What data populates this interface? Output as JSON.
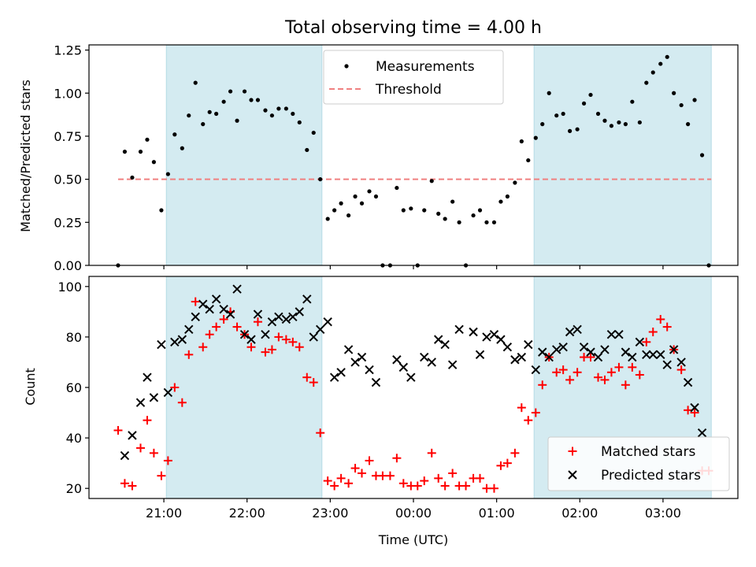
{
  "chart_data": [
    {
      "type": "scatter",
      "title": "Total observing time = 4.00 h",
      "xlabel": "",
      "ylabel": "Matched/Predicted stars",
      "ylim": [
        0,
        1.28
      ],
      "yticks": [
        0.0,
        0.25,
        0.5,
        0.75,
        1.0,
        1.25
      ],
      "ytick_labels": [
        "0.00",
        "0.25",
        "0.50",
        "0.75",
        "1.00",
        "1.25"
      ],
      "x_unit": "hours after 21:00 UTC",
      "xlim": [
        -0.9,
        6.9
      ],
      "shaded_intervals": [
        [
          0.03,
          1.9
        ],
        [
          4.45,
          6.58
        ]
      ],
      "threshold": {
        "name": "Threshold",
        "value": 0.5,
        "x_range": [
          -0.55,
          6.58
        ],
        "color": "#f08080"
      },
      "series": [
        {
          "name": "Measurements",
          "color": "#000000",
          "marker": "dot",
          "points": [
            [
              -0.55,
              0.0
            ],
            [
              -0.47,
              0.66
            ],
            [
              -0.38,
              0.51
            ],
            [
              -0.28,
              0.66
            ],
            [
              -0.2,
              0.73
            ],
            [
              -0.12,
              0.6
            ],
            [
              -0.03,
              0.32
            ],
            [
              0.05,
              0.53
            ],
            [
              0.13,
              0.76
            ],
            [
              0.22,
              0.68
            ],
            [
              0.3,
              0.87
            ],
            [
              0.38,
              1.06
            ],
            [
              0.47,
              0.82
            ],
            [
              0.55,
              0.89
            ],
            [
              0.63,
              0.88
            ],
            [
              0.72,
              0.95
            ],
            [
              0.8,
              1.01
            ],
            [
              0.88,
              0.84
            ],
            [
              0.97,
              1.01
            ],
            [
              1.05,
              0.96
            ],
            [
              1.13,
              0.96
            ],
            [
              1.22,
              0.9
            ],
            [
              1.3,
              0.87
            ],
            [
              1.38,
              0.91
            ],
            [
              1.47,
              0.91
            ],
            [
              1.55,
              0.88
            ],
            [
              1.63,
              0.83
            ],
            [
              1.72,
              0.67
            ],
            [
              1.8,
              0.77
            ],
            [
              1.88,
              0.5
            ],
            [
              1.97,
              0.27
            ],
            [
              2.05,
              0.32
            ],
            [
              2.13,
              0.36
            ],
            [
              2.22,
              0.29
            ],
            [
              2.3,
              0.4
            ],
            [
              2.38,
              0.36
            ],
            [
              2.47,
              0.43
            ],
            [
              2.55,
              0.4
            ],
            [
              2.63,
              0.0
            ],
            [
              2.72,
              0.0
            ],
            [
              2.8,
              0.45
            ],
            [
              2.88,
              0.32
            ],
            [
              2.97,
              0.33
            ],
            [
              3.05,
              0.0
            ],
            [
              3.13,
              0.32
            ],
            [
              3.22,
              0.49
            ],
            [
              3.3,
              0.3
            ],
            [
              3.38,
              0.27
            ],
            [
              3.47,
              0.37
            ],
            [
              3.55,
              0.25
            ],
            [
              3.63,
              0.0
            ],
            [
              3.72,
              0.29
            ],
            [
              3.8,
              0.32
            ],
            [
              3.88,
              0.25
            ],
            [
              3.97,
              0.25
            ],
            [
              4.05,
              0.37
            ],
            [
              4.13,
              0.4
            ],
            [
              4.22,
              0.48
            ],
            [
              4.3,
              0.72
            ],
            [
              4.38,
              0.61
            ],
            [
              4.47,
              0.74
            ],
            [
              4.55,
              0.82
            ],
            [
              4.63,
              1.0
            ],
            [
              4.72,
              0.87
            ],
            [
              4.8,
              0.88
            ],
            [
              4.88,
              0.78
            ],
            [
              4.97,
              0.79
            ],
            [
              5.05,
              0.94
            ],
            [
              5.13,
              0.99
            ],
            [
              5.22,
              0.88
            ],
            [
              5.3,
              0.84
            ],
            [
              5.38,
              0.81
            ],
            [
              5.47,
              0.83
            ],
            [
              5.55,
              0.82
            ],
            [
              5.63,
              0.95
            ],
            [
              5.72,
              0.83
            ],
            [
              5.8,
              1.06
            ],
            [
              5.88,
              1.12
            ],
            [
              5.97,
              1.17
            ],
            [
              6.05,
              1.21
            ],
            [
              6.13,
              1.0
            ],
            [
              6.22,
              0.93
            ],
            [
              6.3,
              0.82
            ],
            [
              6.38,
              0.96
            ],
            [
              6.47,
              0.64
            ],
            [
              6.55,
              0.0
            ]
          ]
        }
      ],
      "legend": {
        "position": "upper center",
        "entries": [
          "Measurements",
          "Threshold"
        ]
      }
    },
    {
      "type": "scatter",
      "title": "",
      "xlabel": "Time (UTC)",
      "ylabel": "Count",
      "ylim": [
        16,
        104
      ],
      "yticks": [
        20,
        40,
        60,
        80,
        100
      ],
      "ytick_labels": [
        "20",
        "40",
        "60",
        "80",
        "100"
      ],
      "xticks": [
        0,
        1,
        2,
        3,
        4,
        5,
        6
      ],
      "xtick_labels": [
        "21:00",
        "22:00",
        "23:00",
        "00:00",
        "01:00",
        "02:00",
        "03:00"
      ],
      "x_unit": "hours after 21:00 UTC",
      "xlim": [
        -0.9,
        6.9
      ],
      "shaded_intervals": [
        [
          0.03,
          1.9
        ],
        [
          4.45,
          6.58
        ]
      ],
      "series": [
        {
          "name": "Matched stars",
          "color": "#ff0000",
          "marker": "plus",
          "points": [
            [
              -0.55,
              43
            ],
            [
              -0.47,
              22
            ],
            [
              -0.38,
              21
            ],
            [
              -0.28,
              36
            ],
            [
              -0.2,
              47
            ],
            [
              -0.12,
              34
            ],
            [
              -0.03,
              25
            ],
            [
              0.05,
              31
            ],
            [
              0.13,
              60
            ],
            [
              0.22,
              54
            ],
            [
              0.3,
              73
            ],
            [
              0.38,
              94
            ],
            [
              0.47,
              76
            ],
            [
              0.55,
              81
            ],
            [
              0.63,
              84
            ],
            [
              0.72,
              87
            ],
            [
              0.8,
              90
            ],
            [
              0.88,
              84
            ],
            [
              0.97,
              81
            ],
            [
              1.05,
              76
            ],
            [
              1.13,
              86
            ],
            [
              1.22,
              74
            ],
            [
              1.3,
              75
            ],
            [
              1.38,
              80
            ],
            [
              1.47,
              79
            ],
            [
              1.55,
              78
            ],
            [
              1.63,
              76
            ],
            [
              1.72,
              64
            ],
            [
              1.8,
              62
            ],
            [
              1.88,
              42
            ],
            [
              1.97,
              23
            ],
            [
              2.05,
              21
            ],
            [
              2.13,
              24
            ],
            [
              2.22,
              22
            ],
            [
              2.3,
              28
            ],
            [
              2.38,
              26
            ],
            [
              2.47,
              31
            ],
            [
              2.55,
              25
            ],
            [
              2.63,
              25
            ],
            [
              2.72,
              25
            ],
            [
              2.8,
              32
            ],
            [
              2.88,
              22
            ],
            [
              2.97,
              21
            ],
            [
              3.05,
              21
            ],
            [
              3.13,
              23
            ],
            [
              3.22,
              34
            ],
            [
              3.3,
              24
            ],
            [
              3.38,
              21
            ],
            [
              3.47,
              26
            ],
            [
              3.55,
              21
            ],
            [
              3.63,
              21
            ],
            [
              3.72,
              24
            ],
            [
              3.8,
              24
            ],
            [
              3.88,
              20
            ],
            [
              3.97,
              20
            ],
            [
              4.05,
              29
            ],
            [
              4.13,
              30
            ],
            [
              4.22,
              34
            ],
            [
              4.3,
              52
            ],
            [
              4.38,
              47
            ],
            [
              4.47,
              50
            ],
            [
              4.55,
              61
            ],
            [
              4.63,
              72
            ],
            [
              4.72,
              66
            ],
            [
              4.8,
              67
            ],
            [
              4.88,
              63
            ],
            [
              4.97,
              66
            ],
            [
              5.05,
              72
            ],
            [
              5.13,
              72
            ],
            [
              5.22,
              64
            ],
            [
              5.3,
              63
            ],
            [
              5.38,
              66
            ],
            [
              5.47,
              68
            ],
            [
              5.55,
              61
            ],
            [
              5.63,
              68
            ],
            [
              5.72,
              65
            ],
            [
              5.8,
              78
            ],
            [
              5.88,
              82
            ],
            [
              5.97,
              87
            ],
            [
              6.05,
              84
            ],
            [
              6.13,
              75
            ],
            [
              6.22,
              67
            ],
            [
              6.3,
              51
            ],
            [
              6.38,
              50
            ],
            [
              6.47,
              27
            ],
            [
              6.55,
              27
            ]
          ]
        },
        {
          "name": "Predicted stars",
          "color": "#000000",
          "marker": "x",
          "points": [
            [
              -0.47,
              33
            ],
            [
              -0.38,
              41
            ],
            [
              -0.28,
              54
            ],
            [
              -0.2,
              64
            ],
            [
              -0.12,
              56
            ],
            [
              -0.03,
              77
            ],
            [
              0.05,
              58
            ],
            [
              0.13,
              78
            ],
            [
              0.22,
              79
            ],
            [
              0.3,
              83
            ],
            [
              0.38,
              88
            ],
            [
              0.47,
              93
            ],
            [
              0.55,
              91
            ],
            [
              0.63,
              95
            ],
            [
              0.72,
              91
            ],
            [
              0.8,
              89
            ],
            [
              0.88,
              99
            ],
            [
              0.97,
              81
            ],
            [
              1.05,
              79
            ],
            [
              1.13,
              89
            ],
            [
              1.22,
              81
            ],
            [
              1.3,
              86
            ],
            [
              1.38,
              88
            ],
            [
              1.47,
              87
            ],
            [
              1.55,
              88
            ],
            [
              1.63,
              90
            ],
            [
              1.72,
              95
            ],
            [
              1.8,
              80
            ],
            [
              1.88,
              83
            ],
            [
              1.97,
              86
            ],
            [
              2.05,
              64
            ],
            [
              2.13,
              66
            ],
            [
              2.22,
              75
            ],
            [
              2.3,
              70
            ],
            [
              2.38,
              72
            ],
            [
              2.47,
              67
            ],
            [
              2.55,
              62
            ],
            [
              2.8,
              71
            ],
            [
              2.88,
              68
            ],
            [
              2.97,
              64
            ],
            [
              3.13,
              72
            ],
            [
              3.22,
              70
            ],
            [
              3.3,
              79
            ],
            [
              3.38,
              77
            ],
            [
              3.47,
              69
            ],
            [
              3.55,
              83
            ],
            [
              3.72,
              82
            ],
            [
              3.8,
              73
            ],
            [
              3.88,
              80
            ],
            [
              3.97,
              81
            ],
            [
              4.05,
              79
            ],
            [
              4.13,
              76
            ],
            [
              4.22,
              71
            ],
            [
              4.3,
              72
            ],
            [
              4.38,
              77
            ],
            [
              4.47,
              67
            ],
            [
              4.55,
              74
            ],
            [
              4.63,
              72
            ],
            [
              4.72,
              75
            ],
            [
              4.8,
              76
            ],
            [
              4.88,
              82
            ],
            [
              4.97,
              83
            ],
            [
              5.05,
              76
            ],
            [
              5.13,
              74
            ],
            [
              5.22,
              72
            ],
            [
              5.3,
              75
            ],
            [
              5.38,
              81
            ],
            [
              5.47,
              81
            ],
            [
              5.55,
              74
            ],
            [
              5.63,
              72
            ],
            [
              5.72,
              78
            ],
            [
              5.8,
              73
            ],
            [
              5.88,
              73
            ],
            [
              5.97,
              73
            ],
            [
              6.05,
              69
            ],
            [
              6.13,
              75
            ],
            [
              6.22,
              70
            ],
            [
              6.3,
              62
            ],
            [
              6.38,
              52
            ],
            [
              6.47,
              42
            ]
          ]
        }
      ],
      "legend": {
        "position": "lower right",
        "entries": [
          "Matched stars",
          "Predicted stars"
        ]
      }
    }
  ]
}
